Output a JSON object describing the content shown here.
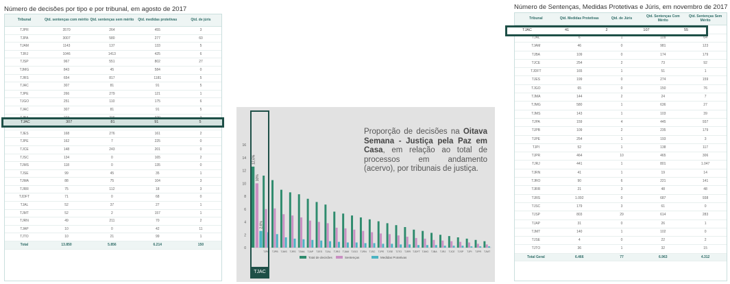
{
  "left": {
    "title": "Número de decisões por tipo e por tribunal, em agosto de 2017",
    "columns": [
      "Tribunal",
      "Qtd. sentenças com mérito",
      "Qtd. sentenças sem mérito",
      "Qtd. medidas protetivas",
      "Qtd. de júris"
    ],
    "rows": [
      [
        "TJPR",
        "3570",
        "264",
        "455",
        "3"
      ],
      [
        "TJPA",
        "3007",
        "580",
        "277",
        "60"
      ],
      [
        "TJAM",
        "1143",
        "137",
        "133",
        "5"
      ],
      [
        "TJRJ",
        "1046",
        "1413",
        "425",
        "6"
      ],
      [
        "TJSP",
        "967",
        "551",
        "802",
        "27"
      ],
      [
        "TJMG",
        "843",
        "45",
        "584",
        "0"
      ],
      [
        "TJRS",
        "654",
        "817",
        "1181",
        "5"
      ],
      [
        "TJAC",
        "307",
        "81",
        "91",
        "5"
      ],
      [
        "TJPE",
        "266",
        "279",
        "121",
        "1"
      ],
      [
        "TJGO",
        "251",
        "110",
        "175",
        "6"
      ],
      [
        "TJAC",
        "307",
        "81",
        "91",
        "5"
      ],
      [
        "TJBA",
        "223",
        "216",
        "320",
        "3"
      ],
      [
        "TJRO",
        "170",
        "247",
        "96",
        "0"
      ],
      [
        "TJES",
        "168",
        "276",
        "161",
        "2"
      ],
      [
        "TJPE",
        "162",
        "7",
        "225",
        "0"
      ],
      [
        "TJCE",
        "148",
        "243",
        "201",
        "0"
      ],
      [
        "TJSC",
        "134",
        "0",
        "165",
        "2"
      ],
      [
        "TJMS",
        "118",
        "0",
        "135",
        "0"
      ],
      [
        "TJSE",
        "99",
        "45",
        "35",
        "1"
      ],
      [
        "TJMA",
        "88",
        "75",
        "104",
        "3"
      ],
      [
        "TJRR",
        "75",
        "112",
        "18",
        "3"
      ],
      [
        "TJDFT",
        "71",
        "0",
        "68",
        "0"
      ],
      [
        "TJAL",
        "52",
        "37",
        "27",
        "1"
      ],
      [
        "TJMT",
        "52",
        "2",
        "157",
        "1"
      ],
      [
        "TJRN",
        "49",
        "211",
        "70",
        "2"
      ],
      [
        "TJAP",
        "10",
        "0",
        "42",
        "11"
      ],
      [
        "TJTO",
        "10",
        "21",
        "99",
        "1"
      ]
    ],
    "total": [
      "Total",
      "13.850",
      "5.856",
      "6.214",
      "150"
    ],
    "highlight": [
      "TJAC",
      "307",
      "81",
      "91",
      "5"
    ]
  },
  "right": {
    "title": "Número de Sentenças, Medidas Protetivas e Júris, em novembro de 2017",
    "columns": [
      "Tribunal",
      "Qtd. Medidas Protetivas",
      "Qtd. de Júris",
      "Qtd. Sentenças Com Mérito",
      "Qtd. Sentenças Sem Mérito"
    ],
    "highlight": [
      "TJAC",
      "41",
      "2",
      "107",
      "55"
    ],
    "rows": [
      [
        "TJAL",
        "6",
        "1",
        "109",
        "64"
      ],
      [
        "TJAM",
        "46",
        "0",
        "981",
        "123"
      ],
      [
        "TJBA",
        "109",
        "0",
        "174",
        "179"
      ],
      [
        "TJCE",
        "254",
        "2",
        "73",
        "92"
      ],
      [
        "TJDFT",
        "165",
        "1",
        "51",
        "1"
      ],
      [
        "TJES",
        "199",
        "0",
        "274",
        "159"
      ],
      [
        "TJGO",
        "65",
        "0",
        "150",
        "76"
      ],
      [
        "TJMA",
        "144",
        "2",
        "24",
        "7"
      ],
      [
        "TJMG",
        "580",
        "1",
        "636",
        "27"
      ],
      [
        "TJMS",
        "143",
        "1",
        "103",
        "39"
      ],
      [
        "TJPA",
        "159",
        "4",
        "445",
        "937"
      ],
      [
        "TJPB",
        "109",
        "2",
        "235",
        "179"
      ],
      [
        "TJPE",
        "254",
        "1",
        "193",
        "3"
      ],
      [
        "TJPI",
        "52",
        "1",
        "138",
        "117"
      ],
      [
        "TJPR",
        "464",
        "10",
        "465",
        "306"
      ],
      [
        "TJRJ",
        "441",
        "1",
        "801",
        "1.047"
      ],
      [
        "TJRN",
        "41",
        "1",
        "19",
        "14"
      ],
      [
        "TJRO",
        "90",
        "6",
        "221",
        "141"
      ],
      [
        "TJRR",
        "21",
        "3",
        "48",
        "48"
      ],
      [
        "TJRS",
        "1.092",
        "0",
        "687",
        "938"
      ],
      [
        "TJSC",
        "179",
        "3",
        "61",
        "0"
      ],
      [
        "TJSP",
        "803",
        "29",
        "614",
        "283"
      ],
      [
        "TJAP",
        "31",
        "0",
        "26",
        "1"
      ],
      [
        "TJMT",
        "140",
        "1",
        "102",
        "0"
      ],
      [
        "TJSE",
        "4",
        "0",
        "22",
        "2"
      ],
      [
        "TJTO",
        "36",
        "1",
        "32",
        "15"
      ]
    ],
    "total": [
      "Total Geral",
      "6.466",
      "77",
      "6.963",
      "4.312"
    ]
  },
  "chart": {
    "caption_pre": "Proporção de decisões na ",
    "caption_bold": "Oitava Semana - Justiça pela Paz em Casa",
    "caption_post": ", em relação ao total de processos em andamento (acervo), por tribunais de justiça.",
    "tjac_label": "TJAC",
    "colors": {
      "total": "#2e8b6d",
      "sentencas": "#c98fc2",
      "medidas": "#4bb3c2"
    }
  },
  "chart_data": {
    "type": "bar",
    "categories": [
      "TJAC",
      "TJPA",
      "TJPB",
      "TJMS",
      "TJRS",
      "TJMA",
      "TJAP",
      "TJES",
      "TJAL",
      "TJRO",
      "TJAM",
      "TJGO",
      "TJRN",
      "TJSC",
      "TJPE",
      "TJSE",
      "TJTO",
      "TJRR",
      "TJDFT",
      "TJMG",
      "TJBA",
      "TJRJ",
      "TJCE",
      "TJSP",
      "TJPI",
      "TJPR",
      "TJMT"
    ],
    "series": [
      {
        "name": "Total de decisões",
        "values": [
          12.6,
          11.2,
          10.5,
          9.0,
          8.6,
          8.3,
          7.6,
          7.1,
          6.7,
          5.6,
          5.3,
          5.0,
          4.7,
          4.4,
          4.1,
          3.8,
          3.5,
          3.2,
          2.8,
          2.6,
          2.3,
          2.0,
          1.8,
          1.6,
          1.4,
          1.2,
          1.0
        ]
      },
      {
        "name": "Sentenças",
        "values": [
          10.0,
          6.0,
          6.1,
          5.2,
          5.0,
          4.7,
          4.2,
          4.0,
          3.8,
          3.1,
          3.0,
          2.8,
          2.6,
          2.4,
          2.2,
          2.1,
          1.9,
          1.7,
          1.5,
          1.4,
          1.2,
          1.1,
          1.0,
          0.9,
          0.8,
          0.6,
          0.5
        ]
      },
      {
        "name": "Medidas Protetivas",
        "values": [
          2.6,
          2.4,
          2.1,
          1.6,
          1.4,
          1.3,
          1.2,
          1.1,
          1.0,
          0.9,
          0.8,
          0.8,
          0.7,
          0.7,
          0.6,
          0.6,
          0.5,
          0.5,
          0.4,
          0.4,
          0.4,
          0.3,
          0.3,
          0.3,
          0.2,
          0.2,
          0.2
        ]
      }
    ],
    "data_labels": [
      "12,6%",
      "10%",
      "2,6%"
    ],
    "yticks": [
      0,
      2,
      4,
      6,
      8,
      10,
      12,
      14,
      16
    ],
    "ylim": [
      0,
      16
    ]
  }
}
